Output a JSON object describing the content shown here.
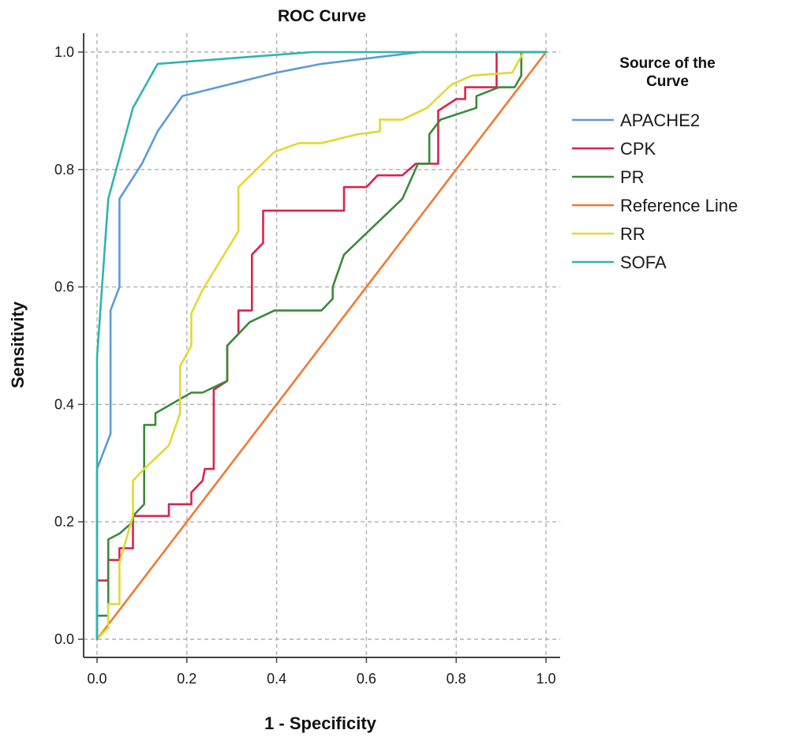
{
  "chart_data": {
    "type": "line",
    "title": "ROC Curve",
    "xlabel": "1 - Specificity",
    "ylabel": "Sensitivity",
    "xlim": [
      0,
      1
    ],
    "ylim": [
      0,
      1
    ],
    "x_ticks": [
      "0.0",
      "0.2",
      "0.4",
      "0.6",
      "0.8",
      "1.0"
    ],
    "y_ticks": [
      "0.0",
      "0.2",
      "0.4",
      "0.6",
      "0.8",
      "1.0"
    ],
    "grid": true,
    "legend": {
      "title_lines": [
        "Source of the",
        "Curve"
      ],
      "placement": "right"
    },
    "series": [
      {
        "name": "APACHE2",
        "color": "#5b9bd5",
        "points": [
          [
            0,
            0
          ],
          [
            0,
            0.29
          ],
          [
            0.03,
            0.35
          ],
          [
            0.03,
            0.56
          ],
          [
            0.05,
            0.6
          ],
          [
            0.05,
            0.75
          ],
          [
            0.1,
            0.81
          ],
          [
            0.135,
            0.865
          ],
          [
            0.19,
            0.925
          ],
          [
            0.4,
            0.965
          ],
          [
            0.5,
            0.98
          ],
          [
            0.72,
            1.0
          ],
          [
            1.0,
            1.0
          ]
        ]
      },
      {
        "name": "CPK",
        "color": "#d8244c",
        "points": [
          [
            0,
            0
          ],
          [
            0,
            0.1
          ],
          [
            0.025,
            0.1
          ],
          [
            0.025,
            0.135
          ],
          [
            0.05,
            0.135
          ],
          [
            0.05,
            0.155
          ],
          [
            0.08,
            0.155
          ],
          [
            0.08,
            0.21
          ],
          [
            0.16,
            0.21
          ],
          [
            0.16,
            0.23
          ],
          [
            0.21,
            0.23
          ],
          [
            0.21,
            0.25
          ],
          [
            0.235,
            0.27
          ],
          [
            0.24,
            0.29
          ],
          [
            0.26,
            0.29
          ],
          [
            0.26,
            0.425
          ],
          [
            0.29,
            0.44
          ],
          [
            0.29,
            0.5
          ],
          [
            0.315,
            0.52
          ],
          [
            0.315,
            0.56
          ],
          [
            0.345,
            0.56
          ],
          [
            0.345,
            0.655
          ],
          [
            0.37,
            0.675
          ],
          [
            0.37,
            0.73
          ],
          [
            0.55,
            0.73
          ],
          [
            0.55,
            0.77
          ],
          [
            0.6,
            0.77
          ],
          [
            0.625,
            0.79
          ],
          [
            0.68,
            0.79
          ],
          [
            0.71,
            0.81
          ],
          [
            0.76,
            0.81
          ],
          [
            0.76,
            0.825
          ],
          [
            0.76,
            0.9
          ],
          [
            0.8,
            0.92
          ],
          [
            0.82,
            0.92
          ],
          [
            0.82,
            0.94
          ],
          [
            0.89,
            0.94
          ],
          [
            0.89,
            1.0
          ],
          [
            1.0,
            1.0
          ]
        ]
      },
      {
        "name": "PR",
        "color": "#3a8a3a",
        "points": [
          [
            0,
            0
          ],
          [
            0,
            0.04
          ],
          [
            0.025,
            0.04
          ],
          [
            0.025,
            0.17
          ],
          [
            0.05,
            0.18
          ],
          [
            0.08,
            0.2
          ],
          [
            0.08,
            0.21
          ],
          [
            0.105,
            0.23
          ],
          [
            0.105,
            0.365
          ],
          [
            0.13,
            0.365
          ],
          [
            0.13,
            0.385
          ],
          [
            0.21,
            0.42
          ],
          [
            0.235,
            0.42
          ],
          [
            0.29,
            0.44
          ],
          [
            0.29,
            0.5
          ],
          [
            0.34,
            0.54
          ],
          [
            0.395,
            0.56
          ],
          [
            0.5,
            0.56
          ],
          [
            0.525,
            0.58
          ],
          [
            0.525,
            0.6
          ],
          [
            0.55,
            0.655
          ],
          [
            0.68,
            0.75
          ],
          [
            0.715,
            0.81
          ],
          [
            0.74,
            0.81
          ],
          [
            0.74,
            0.86
          ],
          [
            0.765,
            0.885
          ],
          [
            0.845,
            0.905
          ],
          [
            0.845,
            0.925
          ],
          [
            0.895,
            0.94
          ],
          [
            0.93,
            0.94
          ],
          [
            0.945,
            0.96
          ],
          [
            0.945,
            1.0
          ],
          [
            1.0,
            1.0
          ]
        ]
      },
      {
        "name": "Reference Line",
        "color": "#ef7a35",
        "points": [
          [
            0,
            0
          ],
          [
            1,
            1
          ]
        ]
      },
      {
        "name": "RR",
        "color": "#e3d833",
        "points": [
          [
            0,
            0
          ],
          [
            0.025,
            0.02
          ],
          [
            0.025,
            0.06
          ],
          [
            0.05,
            0.06
          ],
          [
            0.05,
            0.13
          ],
          [
            0.08,
            0.21
          ],
          [
            0.08,
            0.27
          ],
          [
            0.105,
            0.29
          ],
          [
            0.16,
            0.33
          ],
          [
            0.185,
            0.385
          ],
          [
            0.185,
            0.465
          ],
          [
            0.21,
            0.5
          ],
          [
            0.21,
            0.555
          ],
          [
            0.235,
            0.595
          ],
          [
            0.315,
            0.695
          ],
          [
            0.315,
            0.77
          ],
          [
            0.395,
            0.83
          ],
          [
            0.45,
            0.845
          ],
          [
            0.5,
            0.845
          ],
          [
            0.58,
            0.86
          ],
          [
            0.63,
            0.865
          ],
          [
            0.63,
            0.885
          ],
          [
            0.68,
            0.885
          ],
          [
            0.735,
            0.905
          ],
          [
            0.79,
            0.945
          ],
          [
            0.835,
            0.96
          ],
          [
            0.925,
            0.965
          ],
          [
            0.95,
            1.0
          ],
          [
            1.0,
            1.0
          ]
        ]
      },
      {
        "name": "SOFA",
        "color": "#2fb5ae",
        "points": [
          [
            0,
            0
          ],
          [
            0,
            0.48
          ],
          [
            0.025,
            0.75
          ],
          [
            0.08,
            0.905
          ],
          [
            0.135,
            0.98
          ],
          [
            0.48,
            1.0
          ],
          [
            1.0,
            1.0
          ]
        ]
      }
    ]
  }
}
